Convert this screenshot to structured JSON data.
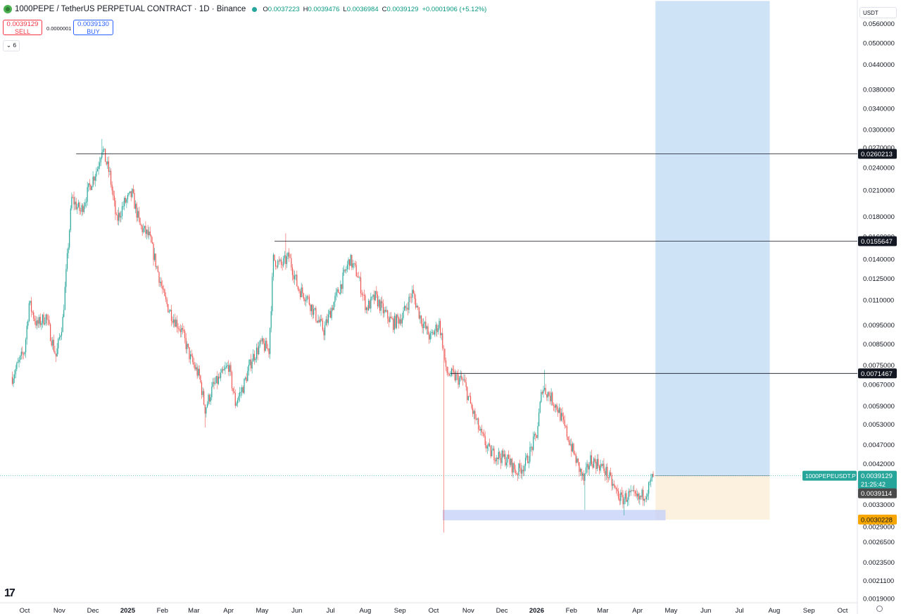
{
  "header": {
    "symbol": "1000PEPE / TetherUS PERPETUAL CONTRACT · 1D · Binance",
    "open_label": "O",
    "open": "0.0037223",
    "high_label": "H",
    "high": "0.0039476",
    "low_label": "L",
    "low": "0.0036984",
    "close_label": "C",
    "close": "0.0039129",
    "change": "+0.0001906 (+5.12%)"
  },
  "trade": {
    "sell_price": "0.0039129",
    "sell_label": "SELL",
    "spread": "0.0000001",
    "buy_price": "0.0039130",
    "buy_label": "BUY"
  },
  "indicator_toggle": "6",
  "currency": "USDT",
  "colors": {
    "up": "#26a69a",
    "down": "#ef5350",
    "position_target": "#cfe3f7",
    "position_stop": "#fbf1de",
    "support_zone": "#c7d2f7",
    "stop_tag": "#f7a600"
  },
  "chart_data": {
    "type": "candlestick",
    "scale": "log",
    "ylim": [
      0.0018,
      0.062
    ],
    "y_ticks": [
      "0.0560000",
      "0.0500000",
      "0.0440000",
      "0.0380000",
      "0.0340000",
      "0.0300000",
      "0.0270000",
      "0.0240000",
      "0.0210000",
      "0.0180000",
      "0.0160000",
      "0.0140000",
      "0.0125000",
      "0.0110000",
      "0.0095000",
      "0.0085000",
      "0.0075000",
      "0.0067000",
      "0.0059000",
      "0.0053000",
      "0.0047000",
      "0.0042000",
      "0.0033000",
      "0.0029000",
      "0.0026500",
      "0.0023500",
      "0.0021100",
      "0.0019000"
    ],
    "x_labels": [
      {
        "date": "2024-10-01",
        "text": "Oct"
      },
      {
        "date": "2024-11-01",
        "text": "Nov"
      },
      {
        "date": "2024-12-01",
        "text": "Dec"
      },
      {
        "date": "2025-01-01",
        "text": "2025"
      },
      {
        "date": "2025-02-01",
        "text": "Feb"
      },
      {
        "date": "2025-03-01",
        "text": "Mar"
      },
      {
        "date": "2025-04-01",
        "text": "Apr"
      },
      {
        "date": "2025-05-01",
        "text": "May"
      },
      {
        "date": "2025-06-01",
        "text": "Jun"
      },
      {
        "date": "2025-07-01",
        "text": "Jul"
      },
      {
        "date": "2025-08-01",
        "text": "Aug"
      },
      {
        "date": "2025-09-01",
        "text": "Sep"
      },
      {
        "date": "2025-10-01",
        "text": "Oct"
      },
      {
        "date": "2025-11-01",
        "text": "Nov"
      },
      {
        "date": "2025-12-01",
        "text": "Dec"
      },
      {
        "date": "2026-01-01",
        "text": "2026"
      },
      {
        "date": "2026-02-01",
        "text": "Feb"
      },
      {
        "date": "2026-03-01",
        "text": "Mar"
      },
      {
        "date": "2026-04-01",
        "text": "Apr"
      },
      {
        "date": "2026-05-01",
        "text": "May"
      },
      {
        "date": "2026-06-01",
        "text": "Jun"
      },
      {
        "date": "2026-07-01",
        "text": "Jul"
      },
      {
        "date": "2026-08-01",
        "text": "Aug"
      },
      {
        "date": "2026-09-01",
        "text": "Sep"
      },
      {
        "date": "2026-10-01",
        "text": "Oct"
      }
    ],
    "price_path": [
      [
        "2024-09-20",
        0.007
      ],
      [
        "2024-10-01",
        0.0082
      ],
      [
        "2024-10-05",
        0.0108
      ],
      [
        "2024-10-12",
        0.0095
      ],
      [
        "2024-10-20",
        0.01
      ],
      [
        "2024-10-29",
        0.0079
      ],
      [
        "2024-11-04",
        0.0098
      ],
      [
        "2024-11-12",
        0.02
      ],
      [
        "2024-11-20",
        0.0185
      ],
      [
        "2024-11-28",
        0.0215
      ],
      [
        "2024-12-05",
        0.024
      ],
      [
        "2024-12-09",
        0.027
      ],
      [
        "2024-12-16",
        0.023
      ],
      [
        "2024-12-22",
        0.0175
      ],
      [
        "2024-12-29",
        0.0195
      ],
      [
        "2025-01-05",
        0.0205
      ],
      [
        "2025-01-12",
        0.017
      ],
      [
        "2025-01-20",
        0.016
      ],
      [
        "2025-01-28",
        0.013
      ],
      [
        "2025-02-03",
        0.011
      ],
      [
        "2025-02-10",
        0.01
      ],
      [
        "2025-02-18",
        0.0092
      ],
      [
        "2025-02-26",
        0.0078
      ],
      [
        "2025-03-06",
        0.007
      ],
      [
        "2025-03-11",
        0.0058
      ],
      [
        "2025-03-18",
        0.0066
      ],
      [
        "2025-03-25",
        0.007
      ],
      [
        "2025-04-01",
        0.0075
      ],
      [
        "2025-04-07",
        0.006
      ],
      [
        "2025-04-14",
        0.0066
      ],
      [
        "2025-04-22",
        0.0078
      ],
      [
        "2025-04-30",
        0.0085
      ],
      [
        "2025-05-07",
        0.0082
      ],
      [
        "2025-05-11",
        0.014
      ],
      [
        "2025-05-18",
        0.0135
      ],
      [
        "2025-05-25",
        0.0142
      ],
      [
        "2025-06-02",
        0.0118
      ],
      [
        "2025-06-10",
        0.0112
      ],
      [
        "2025-06-18",
        0.01
      ],
      [
        "2025-06-25",
        0.0092
      ],
      [
        "2025-07-02",
        0.0105
      ],
      [
        "2025-07-10",
        0.012
      ],
      [
        "2025-07-18",
        0.014
      ],
      [
        "2025-07-25",
        0.0128
      ],
      [
        "2025-08-02",
        0.0105
      ],
      [
        "2025-08-10",
        0.0112
      ],
      [
        "2025-08-18",
        0.0102
      ],
      [
        "2025-08-26",
        0.0096
      ],
      [
        "2025-09-03",
        0.01
      ],
      [
        "2025-09-12",
        0.0115
      ],
      [
        "2025-09-20",
        0.0098
      ],
      [
        "2025-09-28",
        0.0088
      ],
      [
        "2025-10-06",
        0.0096
      ],
      [
        "2025-10-10",
        0.0082
      ],
      [
        "2025-10-12",
        0.0072
      ],
      [
        "2025-10-20",
        0.007
      ],
      [
        "2025-10-28",
        0.0068
      ],
      [
        "2025-11-04",
        0.0058
      ],
      [
        "2025-11-12",
        0.005
      ],
      [
        "2025-11-20",
        0.0045
      ],
      [
        "2025-11-28",
        0.0044
      ],
      [
        "2025-12-06",
        0.0043
      ],
      [
        "2025-12-14",
        0.004
      ],
      [
        "2025-12-22",
        0.0042
      ],
      [
        "2026-01-01",
        0.005
      ],
      [
        "2026-01-06",
        0.0066
      ],
      [
        "2026-01-12",
        0.0063
      ],
      [
        "2026-01-20",
        0.0058
      ],
      [
        "2026-01-28",
        0.005
      ],
      [
        "2026-02-05",
        0.0043
      ],
      [
        "2026-02-12",
        0.0038
      ],
      [
        "2026-02-18",
        0.0043
      ],
      [
        "2026-02-25",
        0.0042
      ],
      [
        "2026-03-04",
        0.004
      ],
      [
        "2026-03-12",
        0.0036
      ],
      [
        "2026-03-18",
        0.0034
      ],
      [
        "2026-03-25",
        0.0035
      ],
      [
        "2026-04-02",
        0.0034
      ],
      [
        "2026-04-10",
        0.0036
      ],
      [
        "2026-04-15",
        0.0039129
      ]
    ],
    "volatility_spikes": [
      {
        "date": "2024-12-09",
        "high": 0.0284
      },
      {
        "date": "2025-03-11",
        "low": 0.0052
      },
      {
        "date": "2025-05-22",
        "high": 0.0163
      },
      {
        "date": "2025-10-10",
        "low": 0.0028
      },
      {
        "date": "2026-01-08",
        "high": 0.0073
      },
      {
        "date": "2026-02-13",
        "low": 0.0032
      },
      {
        "date": "2026-03-20",
        "low": 0.0031
      }
    ],
    "horizontal_lines": [
      {
        "price": 0.0260213,
        "label": "0.0260213",
        "start": "2024-11-16"
      },
      {
        "price": 0.0155647,
        "label": "0.0155647",
        "start": "2025-05-12"
      },
      {
        "price": 0.0071467,
        "label": "0.0071467",
        "start": "2025-10-16"
      }
    ],
    "support_zone": {
      "top": 0.0032,
      "bottom": 0.00301,
      "start": "2025-10-09",
      "end": "2026-04-26"
    },
    "long_position": {
      "start": "2026-04-17",
      "end": "2026-07-28",
      "entry": 0.0039129,
      "target": 0.064,
      "stop": 0.0030228,
      "stop_label": "0.0030228"
    },
    "last_price": {
      "label": "1000PEPEUSDT.P",
      "price": "0.0039129",
      "countdown": "21:25:42",
      "prev_close": "0.0039114"
    }
  }
}
